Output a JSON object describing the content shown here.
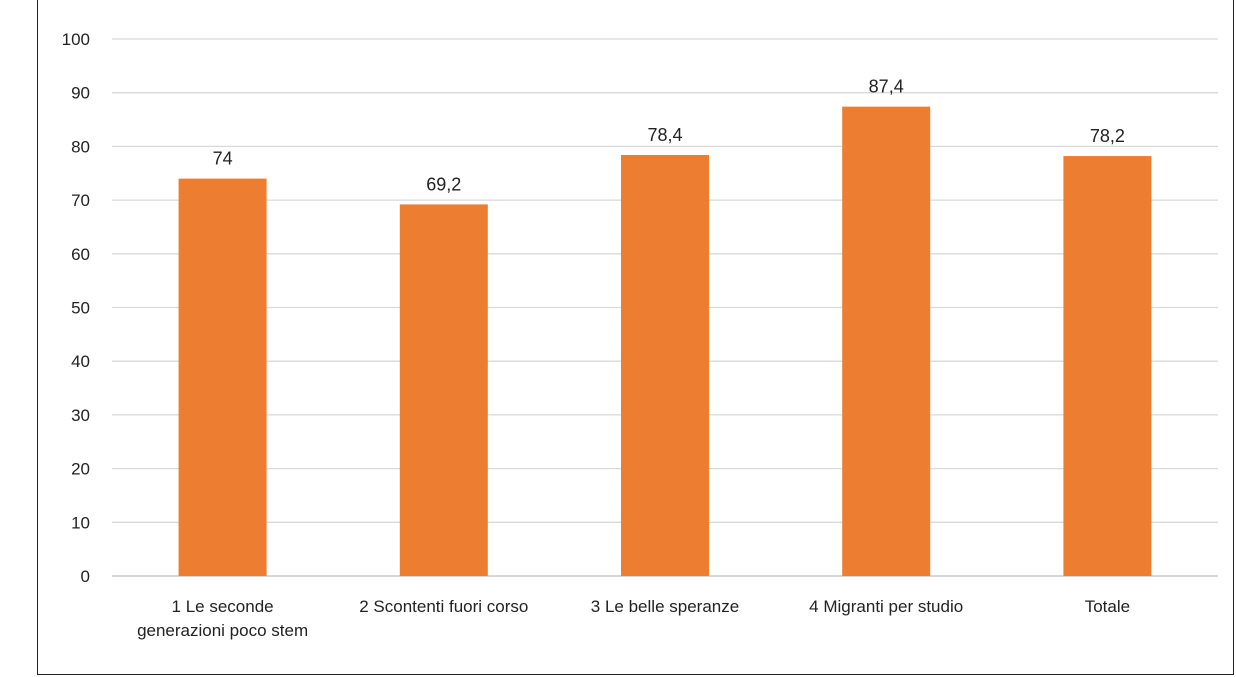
{
  "chart_data": {
    "type": "bar",
    "categories": [
      [
        "1 Le seconde",
        "generazioni poco stem"
      ],
      [
        "2 Scontenti fuori corso"
      ],
      [
        "3 Le belle speranze"
      ],
      [
        "4 Migranti per studio"
      ],
      [
        "Totale"
      ]
    ],
    "values": [
      74,
      69.2,
      78.4,
      87.4,
      78.2
    ],
    "data_labels": [
      "74",
      "69,2",
      "78,4",
      "87,4",
      "78,2"
    ],
    "yticks": [
      "0",
      "10",
      "20",
      "30",
      "40",
      "50",
      "60",
      "70",
      "80",
      "90",
      "100"
    ],
    "ylim": [
      0,
      100
    ],
    "ytick_step": 10,
    "grid": true,
    "title": "",
    "xlabel": "",
    "ylabel": "",
    "colors": {
      "bar": "#ED7D31",
      "grid": "#D9D9D9",
      "axis": "#BFBFBF",
      "text": "#222222"
    }
  }
}
